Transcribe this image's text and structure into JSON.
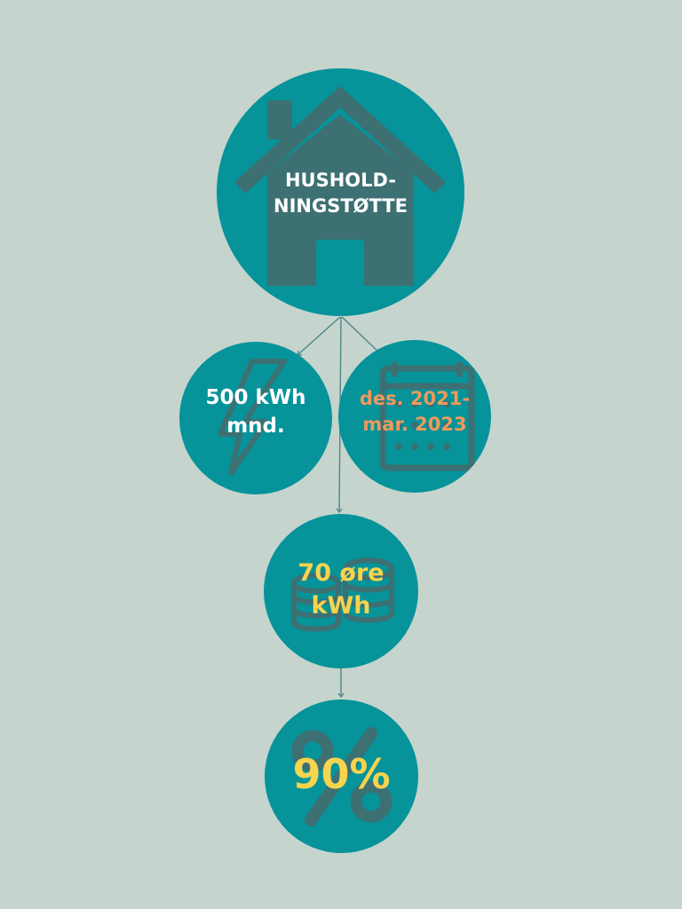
{
  "colors": {
    "background": "#c6d4ce",
    "circle": "#06939a",
    "icon": "#3d7072",
    "connector": "#4d8689",
    "label_white": "#ffffff",
    "label_orange": "#ee9a5c",
    "label_yellow": "#f6d44e"
  },
  "nodes": {
    "house": {
      "icon": "house-icon",
      "line1": "HUSHOLD-",
      "line2": "NINGSTØTTE"
    },
    "kwh": {
      "icon": "lightning-bolt-icon",
      "line1": "500 kWh",
      "line2": "mnd."
    },
    "period": {
      "icon": "calendar-icon",
      "line1": "des. 2021-",
      "line2": "mar. 2023"
    },
    "price": {
      "icon": "coins-icon",
      "line1": "70 øre",
      "line2": "kWh"
    },
    "percent": {
      "icon": "percent-icon",
      "value": "90%"
    }
  }
}
